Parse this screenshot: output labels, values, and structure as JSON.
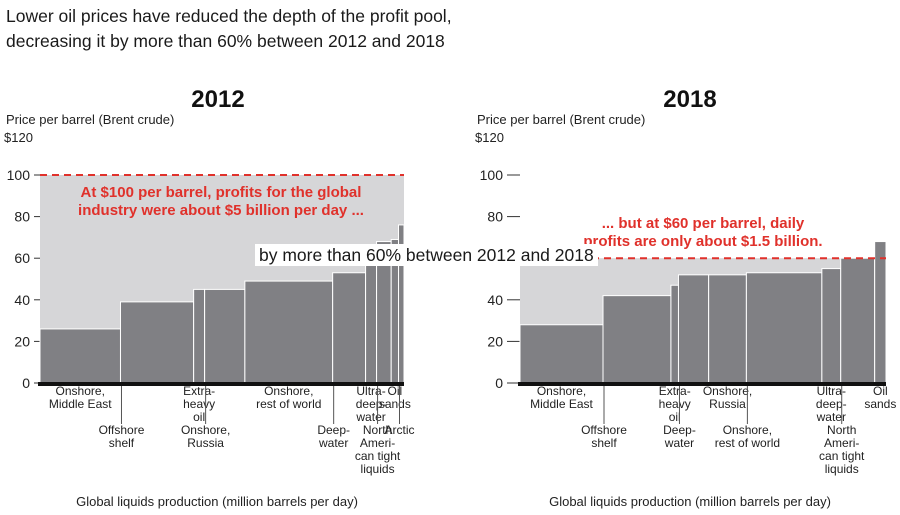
{
  "headline": {
    "line1": "Lower oil prices have reduced the depth of the profit pool,",
    "line2": "decreasing it by more than 60% between 2012 and 2018"
  },
  "overlay_caption": "by more than 60% between 2012 and 2018",
  "colors": {
    "bar": "#808084",
    "pool": "#d6d6d8",
    "price_line": "#e0312b",
    "annotation": "#e0312b",
    "axis": "#111111"
  },
  "chart_data": [
    {
      "type": "bar",
      "title": "2012",
      "ylabel": "Price per barrel (Brent crude)",
      "ylabel_unit": "$120",
      "xlabel": "Global liquids production (million barrels per day)",
      "ylim": [
        0,
        120
      ],
      "yticks": [
        "0",
        "20",
        "40",
        "60",
        "80",
        "100"
      ],
      "price": 100,
      "annotation": [
        "At $100 per barrel, profits for the global",
        "industry were about $5 billion per day ..."
      ],
      "segments": [
        {
          "label": [
            "Onshore,",
            "Middle East"
          ],
          "width": 22,
          "value": 26
        },
        {
          "label": [
            "Offshore",
            "shelf"
          ],
          "width": 20,
          "value": 39
        },
        {
          "label": [
            "Extra-",
            "heavy",
            "oil"
          ],
          "width": 3,
          "value": 45
        },
        {
          "label": [
            "Onshore,",
            "Russia"
          ],
          "width": 11,
          "value": 45
        },
        {
          "label": [
            "Onshore,",
            "rest of world"
          ],
          "width": 24,
          "value": 49
        },
        {
          "label": [
            "Deep-",
            "water"
          ],
          "width": 9,
          "value": 53
        },
        {
          "label": [
            "Ultra-",
            "deep-",
            "water"
          ],
          "width": 3,
          "value": 57
        },
        {
          "label": [
            "North",
            "Ameri-",
            "can tight",
            "liquids"
          ],
          "width": 4,
          "value": 68
        },
        {
          "label": [
            "Oil",
            "sands"
          ],
          "width": 2,
          "value": 69
        },
        {
          "label": [
            "Arctic"
          ],
          "width": 1.5,
          "value": 76
        }
      ]
    },
    {
      "type": "bar",
      "title": "2018",
      "ylabel": "Price per barrel (Brent crude)",
      "ylabel_unit": "$120",
      "xlabel": "Global liquids production (million barrels per day)",
      "ylim": [
        0,
        120
      ],
      "yticks": [
        "0",
        "20",
        "40",
        "60",
        "80",
        "100"
      ],
      "price": 60,
      "annotation": [
        "... but at $60 per barrel, daily",
        "profits are only about $1.5 billion."
      ],
      "segments": [
        {
          "label": [
            "Onshore,",
            "Middle East"
          ],
          "width": 22,
          "value": 28
        },
        {
          "label": [
            "Offshore",
            "shelf"
          ],
          "width": 18,
          "value": 42
        },
        {
          "label": [
            "Extra-",
            "heavy",
            "oil"
          ],
          "width": 2,
          "value": 47
        },
        {
          "label": [
            "Deep-",
            "water"
          ],
          "width": 8,
          "value": 52
        },
        {
          "label": [
            "Onshore,",
            "Russia"
          ],
          "width": 10,
          "value": 52
        },
        {
          "label": [
            "Onshore,",
            "rest of world"
          ],
          "width": 20,
          "value": 53
        },
        {
          "label": [
            "Ultra-",
            "deep-",
            "water"
          ],
          "width": 5,
          "value": 55
        },
        {
          "label": [
            "North",
            "Ameri-",
            "can tight",
            "liquids"
          ],
          "width": 9,
          "value": 60
        },
        {
          "label": [
            "Oil",
            "sands"
          ],
          "width": 3,
          "value": 68
        }
      ]
    }
  ]
}
